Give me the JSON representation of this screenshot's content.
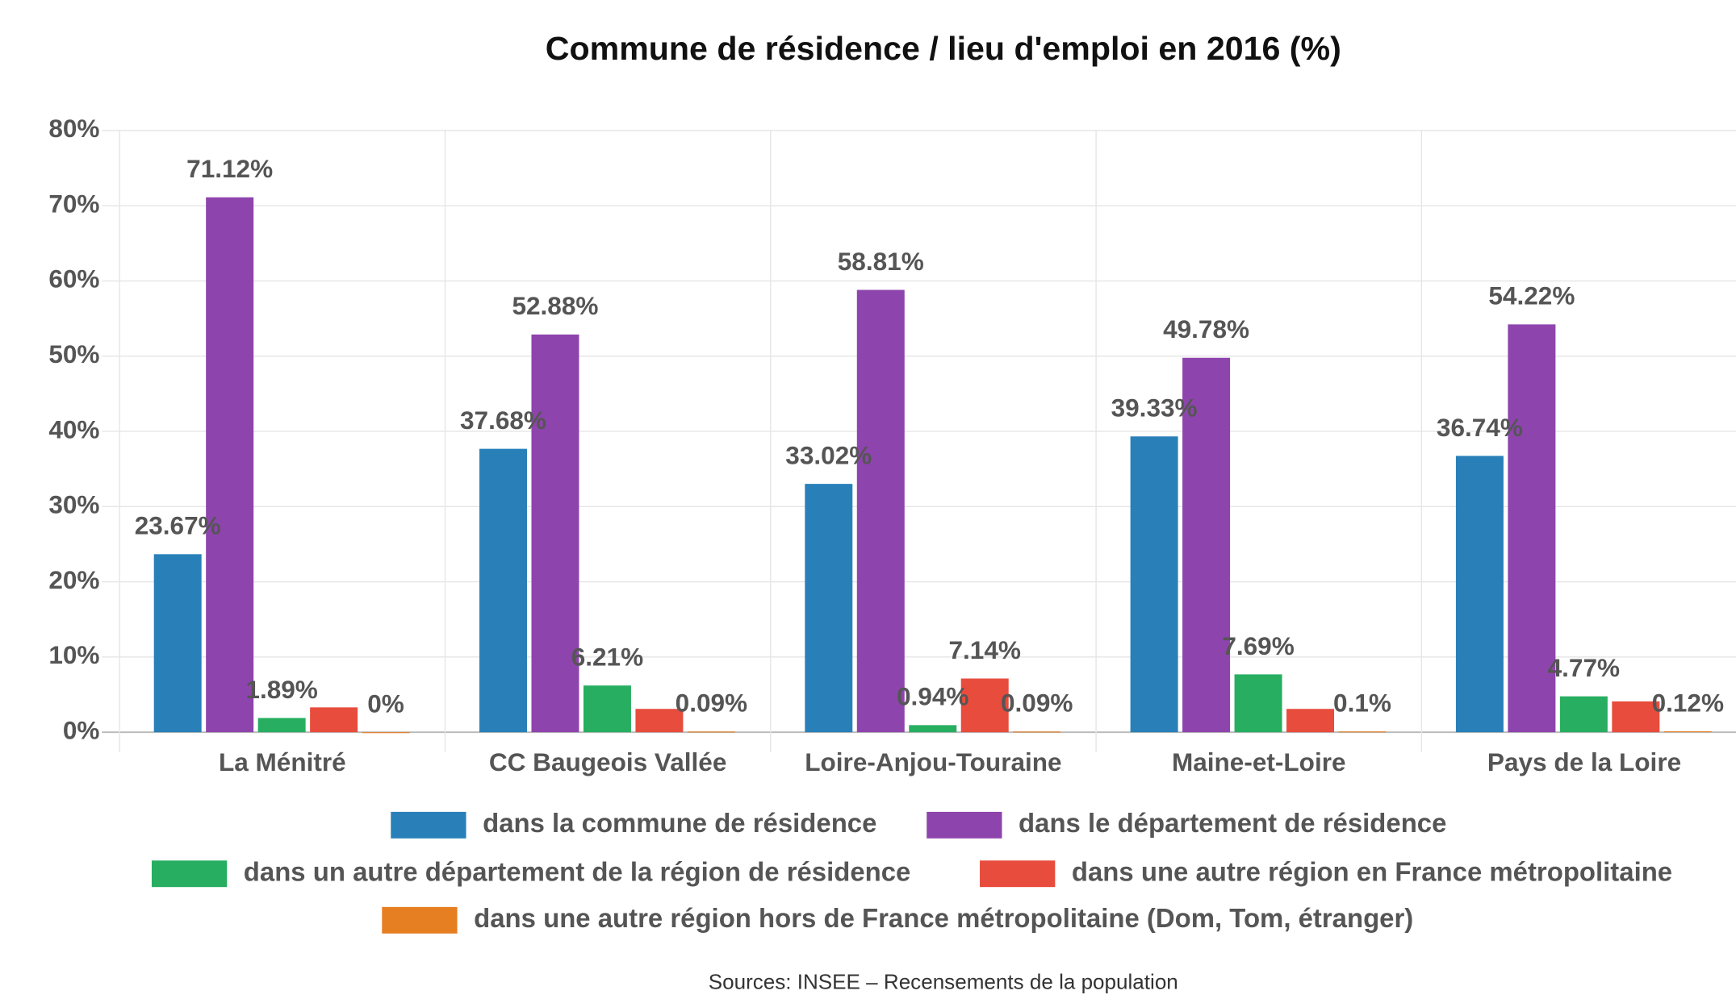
{
  "chart_data": {
    "type": "bar",
    "title": "Commune de résidence / lieu d'emploi en 2016 (%)",
    "source": "Sources: INSEE – Recensements de la population",
    "categories": [
      "La Ménitré",
      "CC Baugeois Vallée",
      "Loire-Anjou-Touraine",
      "Maine-et-Loire",
      "Pays de la Loire"
    ],
    "series": [
      {
        "name": "dans la commune de résidence",
        "color": "#2980b9",
        "values": [
          23.67,
          37.68,
          33.02,
          39.33,
          36.74
        ],
        "value_labels": [
          "23.67%",
          "37.68%",
          "33.02%",
          "39.33%",
          "36.74%"
        ]
      },
      {
        "name": "dans le département de résidence",
        "color": "#8e44ad",
        "values": [
          71.12,
          52.88,
          58.81,
          49.78,
          54.22
        ],
        "value_labels": [
          "71.12%",
          "52.88%",
          "58.81%",
          "49.78%",
          "54.22%"
        ]
      },
      {
        "name": "dans un autre département de la région de résidence",
        "color": "#27ae60",
        "values": [
          1.89,
          6.21,
          0.94,
          7.69,
          4.77
        ],
        "value_labels": [
          "1.89%",
          "6.21%",
          "0.94%",
          "7.69%",
          "4.77%"
        ]
      },
      {
        "name": "dans une autre région en France métropolitaine",
        "color": "#e74c3c",
        "values": [
          3.3,
          3.1,
          7.14,
          3.1,
          4.1
        ],
        "value_labels": [
          null,
          null,
          "7.14%",
          null,
          null
        ]
      },
      {
        "name": "dans une autre région hors de France métropolitaine (Dom, Tom, étranger)",
        "color": "#e67e22",
        "values": [
          0,
          0.09,
          0.09,
          0.1,
          0.12
        ],
        "value_labels": [
          "0%",
          "0.09%",
          "0.09%",
          "0.1%",
          "0.12%"
        ]
      }
    ],
    "ylim": [
      0,
      80
    ],
    "yticks": [
      {
        "value": 0,
        "label": "0%"
      },
      {
        "value": 10,
        "label": "10%"
      },
      {
        "value": 20,
        "label": "20%"
      },
      {
        "value": 30,
        "label": "30%"
      },
      {
        "value": 40,
        "label": "40%"
      },
      {
        "value": 50,
        "label": "50%"
      },
      {
        "value": 60,
        "label": "60%"
      },
      {
        "value": 70,
        "label": "70%"
      },
      {
        "value": 80,
        "label": "80%"
      }
    ],
    "grid": true
  }
}
